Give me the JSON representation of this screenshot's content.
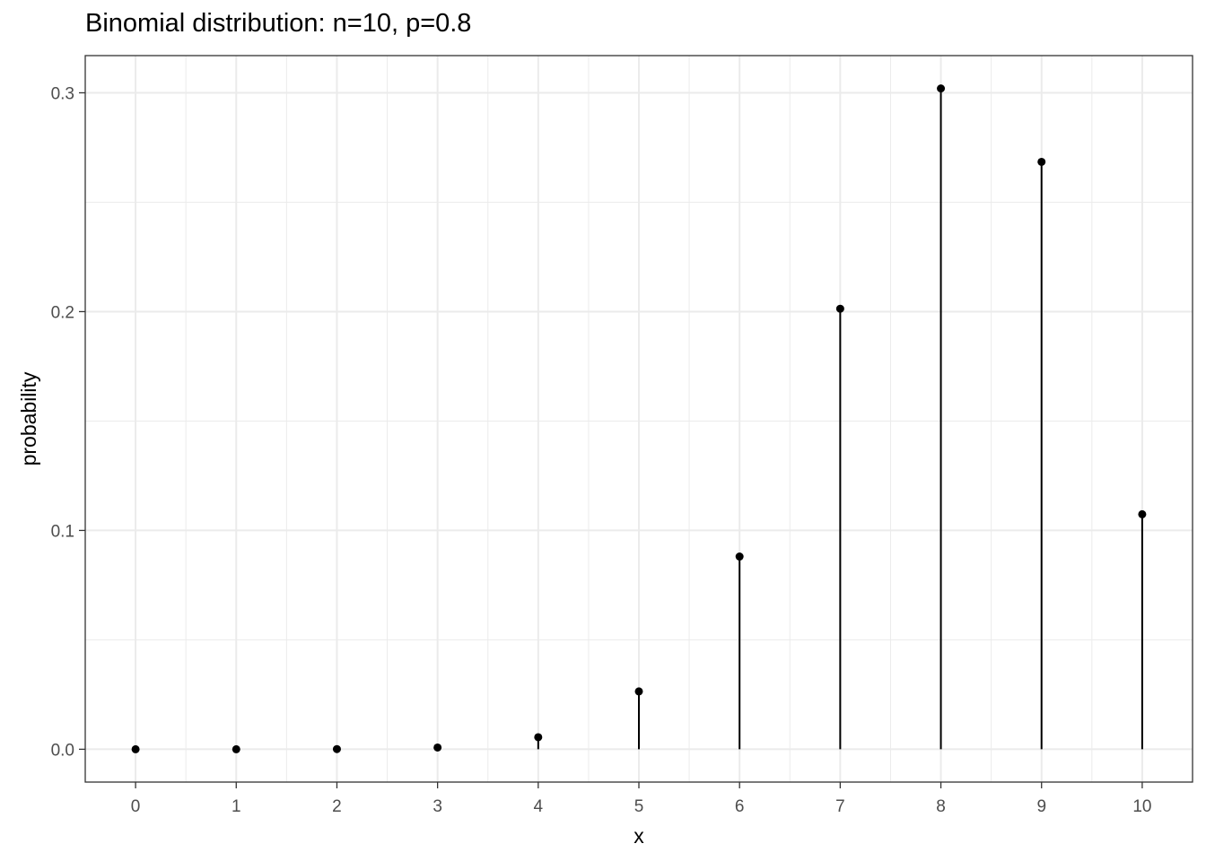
{
  "chart_data": {
    "type": "lollipop",
    "title": "Binomial distribution: n=10, p=0.8",
    "xlabel": "x",
    "ylabel": "probability",
    "x": [
      0,
      1,
      2,
      3,
      4,
      5,
      6,
      7,
      8,
      9,
      10
    ],
    "y": [
      1e-07,
      4.1e-06,
      7.37e-05,
      0.0007864,
      0.005505,
      0.0264241,
      0.0880804,
      0.2013266,
      0.3019899,
      0.2684355,
      0.1073742
    ],
    "x_ticks": [
      "0",
      "1",
      "2",
      "3",
      "4",
      "5",
      "6",
      "7",
      "8",
      "9",
      "10"
    ],
    "y_ticks": [
      "0.0",
      "0.1",
      "0.2",
      "0.3"
    ],
    "xlim": [
      -0.5,
      10.5
    ],
    "ylim": [
      -0.015,
      0.317
    ],
    "grid": true,
    "colors": {
      "marks": "#000000",
      "grid": "#ebebeb",
      "panel_border": "#333333"
    }
  }
}
